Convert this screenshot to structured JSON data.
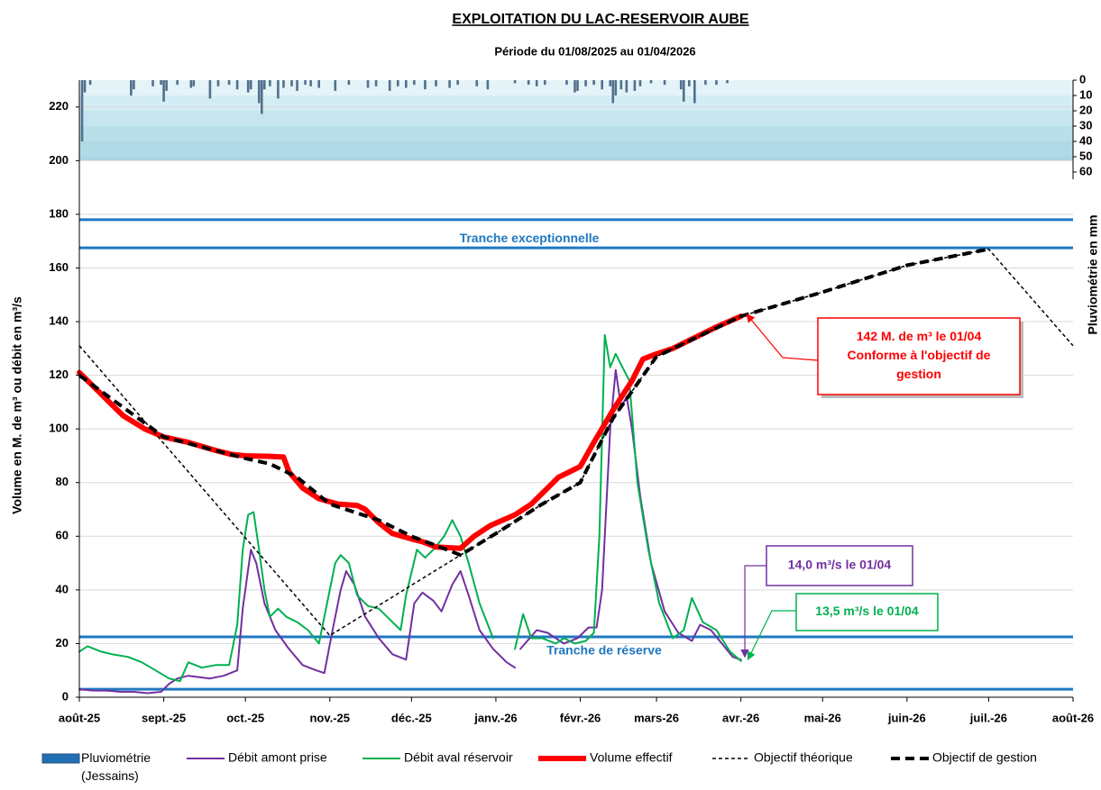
{
  "chart_data": {
    "type": "line",
    "title": "EXPLOITATION  DU  LAC-RESERVOIR  AUBE",
    "subtitle": "Période du 01/08/2025 au 01/04/2026",
    "y_label": "Volume en M. de m³ ou débit en m³/s",
    "y2_label": "Pluviométrie en mm",
    "xlim": [
      0,
      365
    ],
    "xticks": [
      {
        "value": 0,
        "label": "août-25"
      },
      {
        "value": 31,
        "label": "sept.-25"
      },
      {
        "value": 61,
        "label": "oct.-25"
      },
      {
        "value": 92,
        "label": "nov.-25"
      },
      {
        "value": 122,
        "label": "déc.-25"
      },
      {
        "value": 153,
        "label": "janv.-26"
      },
      {
        "value": 184,
        "label": "févr.-26"
      },
      {
        "value": 212,
        "label": "mars-26"
      },
      {
        "value": 243,
        "label": "avr.-26"
      },
      {
        "value": 273,
        "label": "mai-26"
      },
      {
        "value": 304,
        "label": "juin-26"
      },
      {
        "value": 334,
        "label": "juil.-26"
      },
      {
        "value": 365,
        "label": "août-26"
      }
    ],
    "ylim": [
      0,
      230
    ],
    "yticks": [
      0,
      20,
      40,
      60,
      80,
      100,
      120,
      140,
      160,
      180,
      200,
      220
    ],
    "y2lim": [
      0,
      60
    ],
    "y2ticks": [
      0,
      10,
      20,
      30,
      40,
      50,
      60
    ],
    "y2_inverted": true,
    "grid": true,
    "reference_lines": [
      {
        "value": 178,
        "color": "#1f78c1"
      },
      {
        "value": 167.5,
        "color": "#1f78c1",
        "label": "Tranche exceptionnelle"
      },
      {
        "value": 22.5,
        "color": "#1f78c1",
        "label": "Tranche de réserve"
      },
      {
        "value": 3,
        "color": "#1f78c1"
      }
    ],
    "series": [
      {
        "name": "Pluviométrie (Jessains)",
        "type": "bar",
        "axis": "y2",
        "color": "#52708c",
        "x": [
          1,
          2,
          4,
          19,
          20,
          27,
          30,
          31,
          32,
          36,
          41,
          42,
          48,
          51,
          55,
          58,
          62,
          63,
          66,
          67,
          68,
          70,
          73,
          75,
          78,
          80,
          83,
          85,
          88,
          94,
          99,
          106,
          109,
          114,
          117,
          120,
          123,
          127,
          131,
          136,
          139,
          146,
          150,
          160,
          165,
          168,
          171,
          179,
          182,
          183,
          186,
          189,
          192,
          195,
          196,
          197,
          199,
          201,
          204,
          206,
          210,
          215,
          221,
          222,
          224,
          226,
          230,
          234,
          238
        ],
        "values": [
          40,
          8,
          3,
          10,
          6,
          4,
          3,
          14,
          7,
          3,
          5,
          4,
          12,
          4,
          3,
          6,
          8,
          6,
          15,
          22,
          6,
          4,
          12,
          5,
          4,
          7,
          3,
          4,
          5,
          7,
          3,
          5,
          4,
          7,
          4,
          5,
          3,
          6,
          4,
          5,
          3,
          4,
          6,
          2,
          3,
          4,
          3,
          3,
          8,
          7,
          4,
          3,
          6,
          4,
          15,
          10,
          6,
          8,
          7,
          4,
          2,
          3,
          6,
          14,
          4,
          15,
          3,
          3,
          2
        ]
      },
      {
        "name": "Débit amont prise",
        "color": "#7030a0",
        "width": 2,
        "x": [
          0,
          5,
          10,
          15,
          20,
          25,
          30,
          33,
          36,
          40,
          48,
          53,
          58,
          60,
          63,
          65,
          68,
          72,
          77,
          82,
          87,
          90,
          93,
          96,
          98,
          101,
          105,
          110,
          115,
          120,
          123,
          126,
          130,
          133,
          137,
          140,
          143,
          147,
          152,
          157,
          160,
          161,
          162,
          168,
          172,
          178,
          183,
          187,
          190,
          192,
          195,
          197,
          199,
          201,
          203,
          206,
          210,
          215,
          220,
          225,
          228,
          232,
          236,
          240,
          243
        ],
        "values": [
          3,
          2.5,
          2.5,
          2,
          2,
          1.5,
          2,
          5,
          7,
          8,
          7,
          8,
          10,
          33,
          55,
          50,
          35,
          25,
          18,
          12,
          10,
          9,
          25,
          40,
          47,
          42,
          30,
          22,
          16,
          14,
          35,
          39,
          36,
          32,
          42,
          47,
          38,
          25,
          18,
          13,
          11,
          null,
          18,
          25,
          24,
          20,
          22,
          26,
          26,
          40,
          100,
          122,
          108,
          112,
          100,
          75,
          50,
          32,
          24,
          21,
          27,
          25,
          20,
          15,
          14
        ]
      },
      {
        "name": "Débit aval réservoir",
        "color": "#00b050",
        "width": 2,
        "x": [
          0,
          3,
          8,
          12,
          18,
          23,
          28,
          33,
          37,
          40,
          45,
          50,
          55,
          58,
          60,
          62,
          64,
          66,
          68,
          70,
          73,
          76,
          80,
          84,
          88,
          91,
          94,
          96,
          99,
          102,
          106,
          110,
          115,
          118,
          120,
          124,
          127,
          130,
          134,
          137,
          140,
          143,
          147,
          152,
          155,
          160,
          163,
          166,
          170,
          175,
          178,
          182,
          186,
          189,
          191,
          193,
          195,
          197,
          199,
          202,
          205,
          209,
          213,
          218,
          222,
          225,
          229,
          234,
          239,
          243
        ],
        "values": [
          17,
          19,
          17,
          16,
          15,
          13,
          10,
          7,
          6,
          13,
          11,
          12,
          12,
          27,
          55,
          68,
          69,
          55,
          40,
          30,
          33,
          30,
          28,
          25,
          20,
          35,
          50,
          53,
          50,
          38,
          34,
          33,
          28,
          25,
          38,
          55,
          52,
          55,
          60,
          66,
          60,
          50,
          35,
          22,
          null,
          18,
          31,
          22,
          22,
          20,
          22,
          20,
          21,
          24,
          60,
          135,
          123,
          128,
          124,
          118,
          80,
          55,
          35,
          22,
          25,
          37,
          28,
          25,
          17,
          13.5
        ]
      },
      {
        "name": "Volume effectif",
        "color": "#ff0000",
        "width": 6,
        "x": [
          0,
          8,
          16,
          24,
          31,
          40,
          50,
          56,
          61,
          70,
          75,
          77,
          82,
          88,
          95,
          102,
          105,
          110,
          115,
          122,
          126,
          131,
          140,
          145,
          151,
          160,
          166,
          171,
          176,
          184,
          189,
          196,
          203,
          207,
          212,
          218,
          226,
          234,
          243
        ],
        "values": [
          121,
          113,
          105,
          100,
          97,
          95,
          92,
          90.5,
          90,
          89.8,
          89.5,
          84,
          78,
          74,
          72,
          71.5,
          70,
          65,
          61,
          59,
          58,
          56,
          55.5,
          60,
          64,
          68,
          72,
          77,
          82,
          86,
          95,
          107,
          118,
          126,
          128,
          130,
          134,
          138,
          142
        ]
      },
      {
        "name": "Objectif théorique",
        "color": "#000000",
        "width": 1.5,
        "dash": "4 3",
        "x": [
          0,
          92,
          140,
          153,
          170,
          184,
          196,
          212,
          243,
          273,
          304,
          334,
          365
        ],
        "values": [
          131,
          23,
          53,
          61,
          72,
          80,
          104,
          127,
          142,
          151,
          161,
          167,
          131
        ]
      },
      {
        "name": "Objectif de gestion",
        "color": "#000000",
        "width": 4,
        "dash": "10 6",
        "x": [
          0,
          31,
          61,
          70,
          80,
          92,
          110,
          122,
          135,
          140,
          153,
          170,
          184,
          196,
          212,
          243,
          273,
          304,
          334
        ],
        "values": [
          120,
          97,
          89,
          87,
          82,
          72,
          66,
          60,
          55,
          53,
          61,
          72,
          80,
          104,
          127,
          142,
          151,
          161,
          167
        ]
      }
    ],
    "annotations": [
      {
        "lines": [
          "142 M. de m³ le 01/04",
          "Conforme  à l'objectif de",
          "gestion"
        ],
        "color": "#ff0000"
      },
      {
        "lines": [
          "14,0 m³/s le 01/04"
        ],
        "color": "#7030a0"
      },
      {
        "lines": [
          "13,5 m³/s le 01/04"
        ],
        "color": "#00b050"
      }
    ]
  }
}
